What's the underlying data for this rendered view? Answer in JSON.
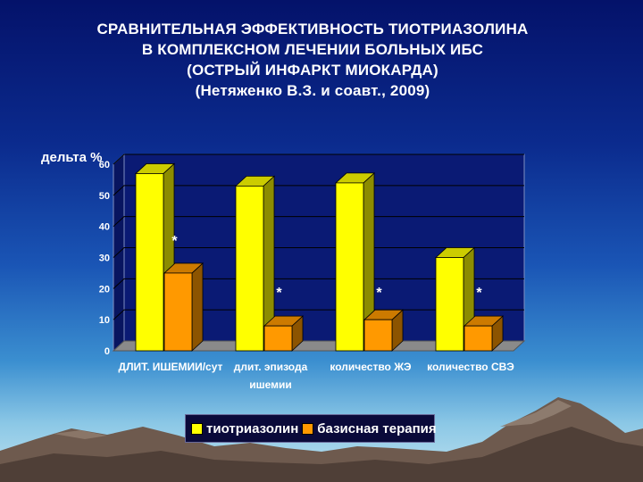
{
  "title_lines": [
    "СРАВНИТЕЛЬНАЯ ЭФФЕКТИВНОСТЬ ТИОТРИАЗОЛИНА",
    "В КОМПЛЕКСНОМ ЛЕЧЕНИИ БОЛЬНЫХ ИБС",
    "(ОСТРЫЙ ИНФАРКТ МИОКАРДА)",
    "(Нетяженко В.З. и соавт., 2009)"
  ],
  "chart_data": {
    "type": "bar",
    "ylabel": "дельта %",
    "ylim": [
      0,
      60
    ],
    "yticks": [
      0,
      10,
      20,
      30,
      40,
      50,
      60
    ],
    "grid": true,
    "legend_position": "bottom",
    "categories": [
      [
        "ДЛИТ. ИШЕМИИ/сут"
      ],
      [
        "длит. эпизода",
        "ишемии"
      ],
      [
        "количество ЖЭ"
      ],
      [
        "количество СВЭ"
      ]
    ],
    "series": [
      {
        "name": "тиотриазолин",
        "values": [
          57,
          53,
          54,
          30
        ],
        "color": "#ffff00"
      },
      {
        "name": "базисная терапия",
        "values": [
          25,
          8,
          10,
          8
        ],
        "color": "#ff9900"
      }
    ],
    "annotations": [
      "*",
      "*",
      "*",
      "*"
    ]
  }
}
